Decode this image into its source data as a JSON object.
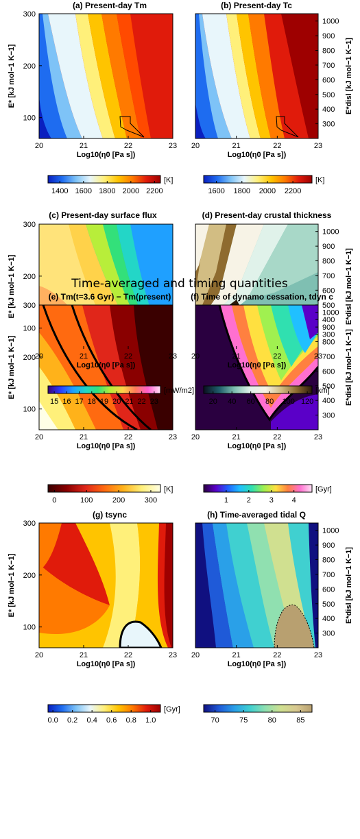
{
  "section_title": "Time-averaged and timing quantities",
  "axes": {
    "xlabel": "Log10(η0 [Pa s])",
    "ylabel_left": "E* [kJ mol−1 K−1]",
    "ylabel_right": "E*disl [kJ mol−1 K−1]",
    "x_ticks": [
      "20",
      "21",
      "22",
      "23"
    ],
    "y_ticks_left": [
      "100",
      "200",
      "300"
    ],
    "y_ticks_right": [
      "300",
      "400",
      "500",
      "600",
      "700",
      "800",
      "900",
      "1000"
    ]
  },
  "panels": [
    {
      "id": "a",
      "title": "(a) Present-day Tm",
      "colorbar": {
        "unit": "[K]",
        "ticks": [
          "1400",
          "1600",
          "1800",
          "2000",
          "2200"
        ],
        "range": [
          1300,
          2250
        ],
        "colormap": [
          "#0a1fbf",
          "#1e6cf0",
          "#7ec3f7",
          "#e8f6fb",
          "#fff07a",
          "#ffc400",
          "#ff7a00",
          "#e01b0b",
          "#9e0000"
        ]
      }
    },
    {
      "id": "b",
      "title": "(b) Present-day Tc",
      "colorbar": {
        "unit": "[K]",
        "ticks": [
          "1600",
          "1800",
          "2000",
          "2200"
        ],
        "range": [
          1500,
          2350
        ],
        "colormap": [
          "#0a1fbf",
          "#1e6cf0",
          "#7ec3f7",
          "#e8f6fb",
          "#fff07a",
          "#ffc400",
          "#ff7a00",
          "#e01b0b",
          "#9e0000"
        ]
      }
    },
    {
      "id": "c",
      "title": "(c) Present-day surface flux",
      "colorbar": {
        "unit": "[mW/m2]",
        "ticks": [
          "15",
          "16",
          "17",
          "18",
          "19",
          "20",
          "21",
          "22",
          "23"
        ],
        "range": [
          14.5,
          23.5
        ],
        "colormap": [
          "#3a007a",
          "#2a3cff",
          "#1fa0ff",
          "#23d6c7",
          "#33e07a",
          "#b8ee3a",
          "#ffd24a",
          "#ff7a5a",
          "#ff5fcf",
          "#ffe3f6"
        ]
      }
    },
    {
      "id": "d",
      "title": "(d) Present-day crustal thickness",
      "colorbar": {
        "unit": "[km]",
        "ticks": [
          "20",
          "40",
          "60",
          "80",
          "100",
          "120"
        ],
        "range": [
          10,
          125
        ],
        "colormap": [
          "#0a0f1e",
          "#1f5d6a",
          "#7fbfb2",
          "#e0f2ea",
          "#f7f3e6",
          "#d2bd83",
          "#8e6b2f",
          "#2a1a08"
        ]
      }
    },
    {
      "id": "e",
      "title": "(e) Tm(t=3.6 Gyr) − Tm(present)",
      "colorbar": {
        "unit": "[K]",
        "ticks": [
          "0",
          "100",
          "200",
          "300"
        ],
        "range": [
          -20,
          330
        ],
        "colormap": [
          "#3a0000",
          "#8a0000",
          "#e0261a",
          "#ff6a10",
          "#ffb21a",
          "#fff07a",
          "#ffffe6"
        ]
      }
    },
    {
      "id": "f",
      "title": "(f) Time of dynamo cessation, tdyn c",
      "colorbar": {
        "unit": "[Gyr]",
        "ticks": [
          "1",
          "2",
          "3",
          "4"
        ],
        "range": [
          0,
          4.8
        ],
        "colormap": [
          "#2a0040",
          "#5a00c8",
          "#2060ff",
          "#20c0ff",
          "#30e0b0",
          "#a0f050",
          "#ffe040",
          "#ff8040",
          "#ff70d0",
          "#ffe0f5"
        ]
      }
    },
    {
      "id": "g",
      "title": "(g) tsync",
      "colorbar": {
        "unit": "[Gyr]",
        "ticks": [
          "0.0",
          "0.2",
          "0.4",
          "0.6",
          "0.8",
          "1.0"
        ],
        "range": [
          -0.05,
          1.1
        ],
        "colormap": [
          "#0a1fbf",
          "#1e6cf0",
          "#7ec3f7",
          "#e8f6fb",
          "#fff07a",
          "#ffc400",
          "#ff7a00",
          "#e01b0b",
          "#9e0000"
        ]
      }
    },
    {
      "id": "h",
      "title": "(h) Time-averaged tidal Q",
      "colorbar": {
        "unit": "",
        "ticks": [
          "70",
          "75",
          "80",
          "85"
        ],
        "range": [
          68,
          87
        ],
        "colormap": [
          "#101080",
          "#1f5ad8",
          "#2aa0e8",
          "#40d0d0",
          "#90e0b0",
          "#d0e090",
          "#d8c890",
          "#b8a070"
        ]
      }
    }
  ],
  "chart_data": [
    {
      "type": "heatmap",
      "title": "(a) Present-day Tm",
      "xlabel": "Log10(η0 [Pa s])",
      "ylabel": "E* [kJ mol−1 K−1]",
      "xlim": [
        20,
        23
      ],
      "ylim": [
        60,
        300
      ],
      "unit": "[K]",
      "x": [
        20,
        21,
        22,
        23
      ],
      "y": [
        60,
        180,
        300
      ],
      "values": [
        [
          1350,
          1700,
          1950,
          2150
        ],
        [
          1550,
          1850,
          2050,
          2180
        ],
        [
          1650,
          1900,
          2080,
          2200
        ]
      ]
    },
    {
      "type": "heatmap",
      "title": "(b) Present-day Tc",
      "xlabel": "Log10(η0 [Pa s])",
      "ylabel": "E*disl [kJ mol−1 K−1]",
      "xlim": [
        20,
        23
      ],
      "ylim": [
        60,
        300
      ],
      "unit": "[K]",
      "x": [
        20,
        21,
        22,
        23
      ],
      "y": [
        60,
        180,
        300
      ],
      "values": [
        [
          1550,
          1850,
          2100,
          2300
        ],
        [
          1700,
          1950,
          2150,
          2320
        ],
        [
          1780,
          2000,
          2200,
          2330
        ]
      ]
    },
    {
      "type": "heatmap",
      "title": "(c) Present-day surface flux",
      "xlabel": "Log10(η0 [Pa s])",
      "ylabel": "E* [kJ mol−1 K−1]",
      "xlim": [
        20,
        23
      ],
      "ylim": [
        60,
        300
      ],
      "unit": "[mW/m2]",
      "x": [
        20,
        21,
        22,
        23
      ],
      "y": [
        60,
        180,
        300
      ],
      "values": [
        [
          23,
          22,
          20,
          17
        ],
        [
          21,
          20,
          18.5,
          16
        ],
        [
          20.5,
          19.5,
          18,
          15.5
        ]
      ]
    },
    {
      "type": "heatmap",
      "title": "(d) Present-day crustal thickness",
      "xlabel": "Log10(η0 [Pa s])",
      "ylabel": "E*disl [kJ mol−1 K−1]",
      "xlim": [
        20,
        23
      ],
      "ylim": [
        60,
        300
      ],
      "unit": "[km]",
      "x": [
        20,
        21,
        22,
        23
      ],
      "y": [
        60,
        180,
        300
      ],
      "values": [
        [
          15,
          30,
          45,
          55
        ],
        [
          80,
          60,
          50,
          55
        ],
        [
          110,
          75,
          55,
          55
        ]
      ]
    },
    {
      "type": "heatmap",
      "title": "(e) Tm(t=3.6 Gyr) − Tm(present)",
      "xlabel": "Log10(η0 [Pa s])",
      "ylabel": "E* [kJ mol−1 K−1]",
      "xlim": [
        20,
        23
      ],
      "ylim": [
        60,
        300
      ],
      "unit": "[K]",
      "x": [
        20,
        21,
        22,
        23
      ],
      "y": [
        60,
        180,
        300
      ],
      "values": [
        [
          300,
          200,
          60,
          0
        ],
        [
          220,
          120,
          20,
          0
        ],
        [
          150,
          50,
          0,
          0
        ]
      ]
    },
    {
      "type": "heatmap",
      "title": "(f) Time of dynamo cessation, tdyn c",
      "xlabel": "Log10(η0 [Pa s])",
      "ylabel": "E*disl [kJ mol−1 K−1]",
      "xlim": [
        20,
        23
      ],
      "ylim": [
        60,
        300
      ],
      "unit": "[Gyr]",
      "x": [
        20,
        21,
        22,
        23
      ],
      "y": [
        60,
        180,
        300
      ],
      "values": [
        [
          0,
          0,
          0.3,
          0.3
        ],
        [
          0,
          3.5,
          2.5,
          4.5
        ],
        [
          0,
          1.5,
          2.0,
          3.5
        ]
      ]
    },
    {
      "type": "heatmap",
      "title": "(g) tsync",
      "xlabel": "Log10(η0 [Pa s])",
      "ylabel": "E* [kJ mol−1 K−1]",
      "xlim": [
        20,
        23
      ],
      "ylim": [
        60,
        300
      ],
      "unit": "[Gyr]",
      "x": [
        20,
        21,
        22,
        23
      ],
      "y": [
        60,
        180,
        300
      ],
      "values": [
        [
          0.8,
          0.7,
          0.3,
          1.0
        ],
        [
          0.9,
          0.7,
          0.6,
          1.0
        ],
        [
          0.95,
          0.7,
          0.6,
          1.0
        ]
      ]
    },
    {
      "type": "heatmap",
      "title": "(h) Time-averaged tidal Q",
      "xlabel": "Log10(η0 [Pa s])",
      "ylabel": "E*disl [kJ mol−1 K−1]",
      "xlim": [
        20,
        23
      ],
      "ylim": [
        60,
        300
      ],
      "unit": "",
      "x": [
        20,
        21,
        22,
        23
      ],
      "y": [
        60,
        180,
        300
      ],
      "values": [
        [
          74,
          77,
          84,
          70
        ],
        [
          72,
          75,
          79,
          70
        ],
        [
          71,
          74,
          78,
          70
        ]
      ]
    }
  ]
}
